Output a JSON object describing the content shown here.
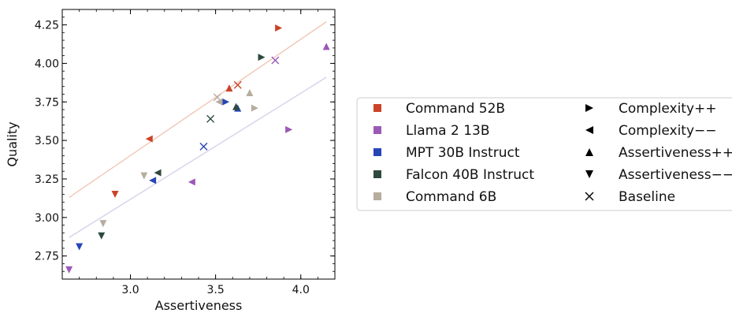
{
  "chart_data": {
    "type": "scatter",
    "xlabel": "Assertiveness",
    "ylabel": "Quality",
    "xlim": [
      2.6,
      4.2
    ],
    "ylim": [
      2.6,
      4.35
    ],
    "xticks": [
      "3.0",
      "3.5",
      "4.0"
    ],
    "yticks": [
      "2.75",
      "3.00",
      "3.25",
      "3.50",
      "3.75",
      "4.00",
      "4.25"
    ],
    "grid": false,
    "legend_position": "right",
    "models": [
      {
        "name": "Command 52B",
        "color": "#cc4328"
      },
      {
        "name": "Llama 2 13B",
        "color": "#9b59b6"
      },
      {
        "name": "MPT 30B Instruct",
        "color": "#2645b7"
      },
      {
        "name": "Falcon 40B Instruct",
        "color": "#2e4a3e"
      },
      {
        "name": "Command 6B",
        "color": "#b6ad9f"
      }
    ],
    "variants": [
      {
        "name": "Complexity++",
        "marker": "triangle-right"
      },
      {
        "name": "Complexity−−",
        "marker": "triangle-left"
      },
      {
        "name": "Assertiveness++",
        "marker": "triangle-up"
      },
      {
        "name": "Assertiveness−−",
        "marker": "triangle-down"
      },
      {
        "name": "Baseline",
        "marker": "x"
      }
    ],
    "points": [
      {
        "model": "Command 52B",
        "variant": "Complexity++",
        "x": 3.87,
        "y": 4.23
      },
      {
        "model": "Command 52B",
        "variant": "Complexity−−",
        "x": 3.11,
        "y": 3.51
      },
      {
        "model": "Command 52B",
        "variant": "Assertiveness++",
        "x": 3.58,
        "y": 3.84
      },
      {
        "model": "Command 52B",
        "variant": "Assertiveness−−",
        "x": 2.91,
        "y": 3.15
      },
      {
        "model": "Command 52B",
        "variant": "Baseline",
        "x": 3.63,
        "y": 3.86
      },
      {
        "model": "Llama 2 13B",
        "variant": "Complexity++",
        "x": 3.93,
        "y": 3.57
      },
      {
        "model": "Llama 2 13B",
        "variant": "Complexity−−",
        "x": 3.36,
        "y": 3.23
      },
      {
        "model": "Llama 2 13B",
        "variant": "Assertiveness++",
        "x": 4.15,
        "y": 4.11
      },
      {
        "model": "Llama 2 13B",
        "variant": "Assertiveness−−",
        "x": 2.64,
        "y": 2.66
      },
      {
        "model": "Llama 2 13B",
        "variant": "Baseline",
        "x": 3.85,
        "y": 4.02
      },
      {
        "model": "MPT 30B Instruct",
        "variant": "Complexity++",
        "x": 3.56,
        "y": 3.75
      },
      {
        "model": "MPT 30B Instruct",
        "variant": "Complexity−−",
        "x": 3.13,
        "y": 3.24
      },
      {
        "model": "MPT 30B Instruct",
        "variant": "Assertiveness++",
        "x": 3.63,
        "y": 3.71
      },
      {
        "model": "MPT 30B Instruct",
        "variant": "Assertiveness−−",
        "x": 2.7,
        "y": 2.81
      },
      {
        "model": "MPT 30B Instruct",
        "variant": "Baseline",
        "x": 3.43,
        "y": 3.46
      },
      {
        "model": "Falcon 40B Instruct",
        "variant": "Complexity++",
        "x": 3.77,
        "y": 4.04
      },
      {
        "model": "Falcon 40B Instruct",
        "variant": "Complexity−−",
        "x": 3.16,
        "y": 3.29
      },
      {
        "model": "Falcon 40B Instruct",
        "variant": "Assertiveness++",
        "x": 3.62,
        "y": 3.72
      },
      {
        "model": "Falcon 40B Instruct",
        "variant": "Assertiveness−−",
        "x": 2.83,
        "y": 2.88
      },
      {
        "model": "Falcon 40B Instruct",
        "variant": "Baseline",
        "x": 3.47,
        "y": 3.64
      },
      {
        "model": "Command 6B",
        "variant": "Complexity++",
        "x": 3.73,
        "y": 3.71
      },
      {
        "model": "Command 6B",
        "variant": "Complexity−−",
        "x": 3.52,
        "y": 3.75
      },
      {
        "model": "Command 6B",
        "variant": "Assertiveness++",
        "x": 3.7,
        "y": 3.81
      },
      {
        "model": "Command 6B",
        "variant": "Assertiveness−−",
        "x": 3.08,
        "y": 3.27
      },
      {
        "model": "Command 6B",
        "variant": "Assertiveness−−",
        "x": 2.84,
        "y": 2.96
      },
      {
        "model": "Command 6B",
        "variant": "Baseline",
        "x": 3.51,
        "y": 3.78
      }
    ],
    "trend_lines": [
      {
        "color": "#f1c7b6",
        "x": [
          2.64,
          4.15
        ],
        "y": [
          3.13,
          4.27
        ]
      },
      {
        "color": "#d8d2ea",
        "x": [
          2.64,
          4.15
        ],
        "y": [
          2.87,
          3.91
        ]
      }
    ]
  }
}
